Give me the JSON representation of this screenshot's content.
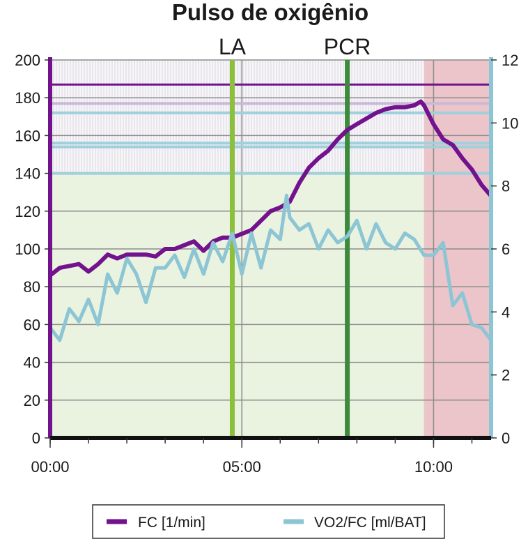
{
  "chart_data": {
    "type": "line",
    "title": "Pulso de oxigênio",
    "xlabel": "",
    "ylabel": "",
    "x_range_seconds": [
      0,
      690
    ],
    "x_ticks": [
      "00:00",
      "05:00",
      "10:00"
    ],
    "left_axis": {
      "range": [
        0,
        200
      ],
      "ticks": [
        "0",
        "20",
        "40",
        "60",
        "80",
        "100",
        "120",
        "140",
        "160",
        "180",
        "200"
      ]
    },
    "right_axis": {
      "range": [
        0,
        12
      ],
      "ticks": [
        "0",
        "2",
        "4",
        "6",
        "8",
        "10",
        "12"
      ]
    },
    "grid": true,
    "legend_position": "bottom",
    "markers": [
      {
        "label": "LA",
        "x": "04:45",
        "color": "#8cbf3c"
      },
      {
        "label": "PCR",
        "x": "07:45",
        "color": "#3d8a3d"
      }
    ],
    "reference_lines_left": [
      187,
      177,
      172,
      156,
      154,
      140
    ],
    "shaded_zones": [
      {
        "name": "green",
        "x": [
          "00:00",
          "11:30"
        ],
        "y": [
          0,
          140
        ],
        "color": "#eaf2e0"
      },
      {
        "name": "stripes",
        "x": [
          "00:00",
          "09:45"
        ],
        "y": [
          140,
          200
        ],
        "color": "#f3f2f5"
      },
      {
        "name": "pink",
        "x": [
          "09:45",
          "11:30"
        ],
        "y": [
          0,
          200
        ],
        "color": "#ebc5c9"
      }
    ],
    "series": [
      {
        "name": "FC [1/min]",
        "axis": "left",
        "color": "#72128d",
        "x": [
          "00:00",
          "00:15",
          "00:30",
          "00:45",
          "01:00",
          "01:15",
          "01:30",
          "01:45",
          "02:00",
          "02:15",
          "02:30",
          "02:45",
          "03:00",
          "03:15",
          "03:30",
          "03:45",
          "04:00",
          "04:15",
          "04:30",
          "04:45",
          "05:00",
          "05:15",
          "05:30",
          "05:45",
          "06:00",
          "06:15",
          "06:30",
          "06:45",
          "07:00",
          "07:15",
          "07:30",
          "07:45",
          "08:00",
          "08:15",
          "08:30",
          "08:45",
          "09:00",
          "09:15",
          "09:30",
          "09:40",
          "09:45",
          "10:00",
          "10:15",
          "10:30",
          "10:45",
          "11:00",
          "11:15",
          "11:30"
        ],
        "values": [
          86,
          90,
          91,
          92,
          88,
          92,
          97,
          95,
          97,
          97,
          97,
          96,
          100,
          100,
          102,
          104,
          99,
          104,
          106,
          106,
          108,
          110,
          115,
          120,
          122,
          125,
          135,
          143,
          148,
          152,
          158,
          163,
          166,
          169,
          172,
          174,
          175,
          175,
          176,
          178,
          176,
          166,
          158,
          155,
          148,
          142,
          134,
          128
        ]
      },
      {
        "name": "VO2/FC [ml/BAT]",
        "axis": "right",
        "color": "#8cc5d4",
        "x": [
          "00:00",
          "00:15",
          "00:30",
          "00:45",
          "01:00",
          "01:15",
          "01:30",
          "01:45",
          "02:00",
          "02:15",
          "02:30",
          "02:45",
          "03:00",
          "03:15",
          "03:30",
          "03:45",
          "04:00",
          "04:15",
          "04:30",
          "04:45",
          "05:00",
          "05:15",
          "05:30",
          "05:45",
          "06:00",
          "06:10",
          "06:15",
          "06:30",
          "06:45",
          "07:00",
          "07:15",
          "07:30",
          "07:45",
          "08:00",
          "08:15",
          "08:30",
          "08:45",
          "09:00",
          "09:15",
          "09:30",
          "09:45",
          "10:00",
          "10:15",
          "10:30",
          "10:45",
          "11:00",
          "11:15",
          "11:30"
        ],
        "values": [
          3.5,
          3.1,
          4.1,
          3.7,
          4.4,
          3.6,
          5.2,
          4.6,
          5.7,
          5.2,
          4.3,
          5.4,
          5.4,
          5.8,
          5.1,
          6.0,
          5.2,
          6.2,
          5.6,
          6.5,
          5.2,
          6.5,
          5.4,
          6.6,
          6.3,
          7.7,
          7.0,
          6.6,
          6.8,
          6.0,
          6.6,
          6.2,
          6.4,
          6.9,
          6.0,
          6.8,
          6.2,
          6.0,
          6.5,
          6.3,
          5.8,
          5.8,
          6.2,
          4.2,
          4.6,
          3.6,
          3.5,
          3.1
        ]
      }
    ]
  },
  "legend": {
    "items": [
      {
        "label": "FC [1/min]",
        "color": "#72128d"
      },
      {
        "label": "VO2/FC [ml/BAT]",
        "color": "#8cc5d4"
      }
    ]
  }
}
